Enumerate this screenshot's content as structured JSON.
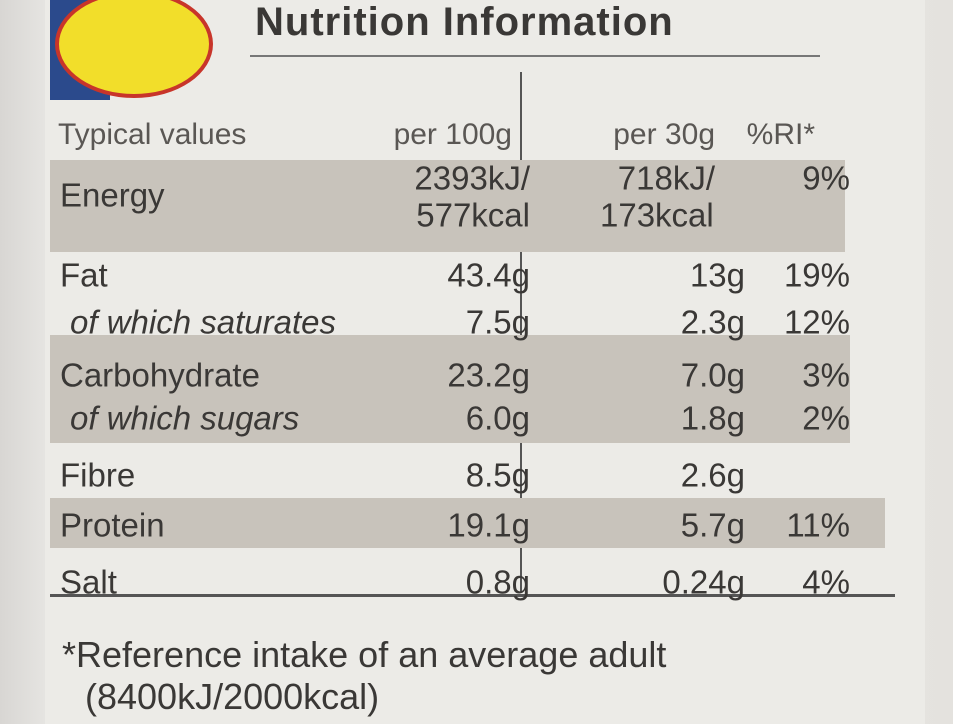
{
  "header": {
    "title": "Nutrition Information"
  },
  "table": {
    "columns": [
      "Typical values",
      "per 100g",
      "per 30g",
      "%RI*"
    ],
    "rows": [
      {
        "label": "Energy",
        "per100g": [
          "2393kJ/",
          "577kcal"
        ],
        "per30g": [
          "718kJ/",
          "173kcal"
        ],
        "ri": "9%"
      },
      {
        "label": "Fat",
        "per100g": "43.4g",
        "per30g": "13g",
        "ri": "19%"
      },
      {
        "label": "of which saturates",
        "per100g": "7.5g",
        "per30g": "2.3g",
        "ri": "12%"
      },
      {
        "label": "Carbohydrate",
        "per100g": "23.2g",
        "per30g": "7.0g",
        "ri": "3%"
      },
      {
        "label": "of which sugars",
        "per100g": "6.0g",
        "per30g": "1.8g",
        "ri": "2%"
      },
      {
        "label": "Fibre",
        "per100g": "8.5g",
        "per30g": "2.6g"
      },
      {
        "label": "Protein",
        "per100g": "19.1g",
        "per30g": "5.7g",
        "ri": "11%"
      },
      {
        "label": "Salt",
        "per100g": "0.8g",
        "per30g": "0.24g",
        "ri": "4%"
      }
    ]
  },
  "footnote": [
    "*Reference intake of an average adult",
    "(8400kJ/2000kcal)"
  ]
}
